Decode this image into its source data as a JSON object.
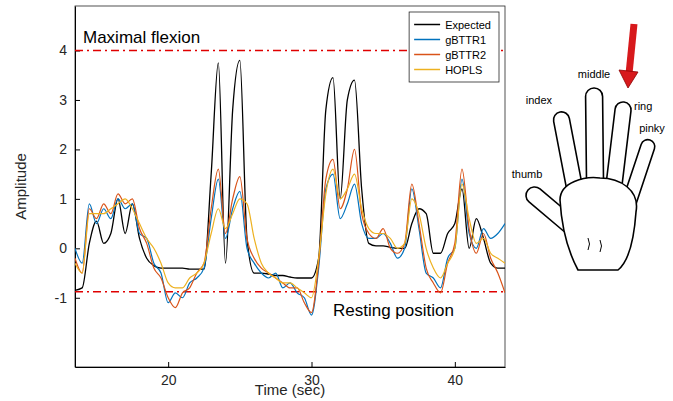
{
  "chart_data": {
    "type": "line",
    "x_label": "Time (sec)",
    "y_label": "Amplitude",
    "xlim": [
      13.5,
      43.5
    ],
    "xticks": [
      20,
      30,
      40
    ],
    "ylim": [
      -2.4,
      4.9
    ],
    "yticks": [
      -1,
      0,
      1,
      2,
      3,
      4
    ],
    "legend": "upper right",
    "hlines": [
      {
        "y": 4,
        "label": "Maximal flexion",
        "color": "#e00000",
        "line_style": "dashdot"
      },
      {
        "y": -0.88,
        "label": "Resting position",
        "color": "#e00000",
        "line_style": "dashdot"
      }
    ],
    "x": [
      13.5,
      14,
      14.5,
      15,
      15.5,
      16,
      16.5,
      17,
      17.5,
      18,
      18.5,
      19,
      19.5,
      20,
      20.5,
      21,
      21.5,
      22,
      22.5,
      23,
      23.5,
      24,
      24.5,
      25,
      25.5,
      26,
      26.5,
      27,
      27.5,
      28,
      28.5,
      29,
      29.5,
      30,
      30.5,
      31,
      31.5,
      32,
      32.5,
      33,
      33.5,
      34,
      34.5,
      35,
      35.5,
      36,
      36.5,
      37,
      37.5,
      38,
      38.5,
      39,
      39.5,
      40,
      40.5,
      41,
      41.5,
      42,
      42.5,
      43,
      43.5
    ],
    "series": [
      {
        "name": "Expected",
        "color": "#000000",
        "values": [
          -0.85,
          -0.8,
          0.1,
          0.55,
          0.1,
          0.3,
          1.0,
          0.3,
          0.9,
          0.2,
          -0.2,
          -0.35,
          -0.4,
          -0.4,
          -0.4,
          -0.4,
          -0.42,
          -0.42,
          -0.42,
          1.5,
          3.75,
          -0.3,
          2.8,
          3.8,
          0.2,
          -0.5,
          -0.5,
          -0.52,
          -0.55,
          -0.55,
          -0.58,
          -0.6,
          -0.6,
          -0.6,
          -0.2,
          2.8,
          3.45,
          1.0,
          3.0,
          3.4,
          1.2,
          0.1,
          0.05,
          0.05,
          0.02,
          0.0,
          0.0,
          0.5,
          0.8,
          0.7,
          -0.1,
          -0.1,
          0.3,
          0.5,
          1.2,
          0.0,
          0.6,
          0.2,
          -0.3,
          -0.4,
          -0.4
        ]
      },
      {
        "name": "gBTTR1",
        "color": "#0072bd",
        "values": [
          0.0,
          -0.3,
          0.9,
          0.5,
          0.8,
          0.6,
          1.0,
          0.8,
          0.9,
          0.3,
          0.2,
          -0.3,
          -0.5,
          -1.1,
          -0.9,
          -1.0,
          -0.7,
          -0.6,
          -0.4,
          0.6,
          1.4,
          0.2,
          0.8,
          1.15,
          0.0,
          -0.3,
          -0.5,
          -0.6,
          -0.5,
          -0.8,
          -0.7,
          -0.9,
          -1.0,
          -1.35,
          -0.4,
          1.2,
          1.5,
          0.6,
          0.9,
          1.3,
          0.5,
          0.2,
          0.2,
          0.3,
          0.1,
          -0.2,
          0.0,
          1.2,
          0.4,
          -0.5,
          -0.6,
          -0.8,
          -0.2,
          0.0,
          1.4,
          0.3,
          0.0,
          0.4,
          0.2,
          0.3,
          0.5
        ]
      },
      {
        "name": "gBTTR2",
        "color": "#d95319",
        "values": [
          -0.2,
          -0.5,
          0.8,
          0.6,
          0.9,
          0.7,
          1.1,
          0.9,
          1.0,
          0.4,
          0.1,
          -0.4,
          -0.6,
          -1.0,
          -1.2,
          -0.9,
          -0.8,
          -0.5,
          -0.3,
          0.8,
          1.6,
          0.3,
          1.0,
          1.45,
          0.2,
          -0.2,
          -0.4,
          -0.5,
          -0.6,
          -0.7,
          -0.8,
          -0.8,
          -1.1,
          -1.3,
          -0.3,
          1.4,
          1.8,
          0.8,
          1.2,
          2.0,
          0.7,
          0.3,
          0.2,
          0.4,
          0.0,
          -0.1,
          0.1,
          1.3,
          0.5,
          -0.4,
          -0.7,
          -0.9,
          -0.3,
          0.1,
          1.6,
          0.4,
          -0.1,
          0.3,
          -0.2,
          -0.5,
          -0.9
        ]
      },
      {
        "name": "HOPLS",
        "color": "#edb120",
        "values": [
          -0.3,
          -0.5,
          0.7,
          0.7,
          0.7,
          0.8,
          0.9,
          1.0,
          0.8,
          0.5,
          0.2,
          0.0,
          -0.3,
          -0.7,
          -0.8,
          -0.8,
          -0.6,
          -0.5,
          -0.3,
          0.3,
          0.8,
          0.4,
          0.7,
          1.0,
          0.9,
          0.2,
          -0.3,
          -0.5,
          -0.6,
          -0.7,
          -0.7,
          -0.8,
          -0.9,
          -1.0,
          -0.2,
          1.1,
          1.6,
          1.0,
          1.2,
          1.5,
          0.8,
          0.4,
          0.3,
          0.3,
          0.2,
          0.0,
          0.1,
          1.0,
          0.7,
          0.0,
          -0.4,
          -0.6,
          -0.3,
          0.0,
          1.3,
          0.6,
          0.1,
          0.2,
          -0.1,
          -0.2,
          -0.3
        ]
      }
    ]
  },
  "hand": {
    "fingers": [
      "thumb",
      "index",
      "middle",
      "ring",
      "pinky"
    ],
    "marked": "ring"
  }
}
